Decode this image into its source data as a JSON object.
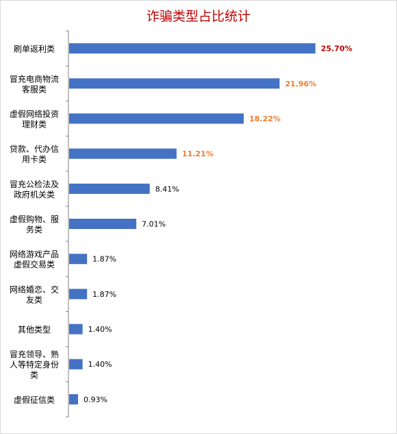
{
  "chart_data": {
    "type": "bar",
    "orientation": "horizontal",
    "title": "诈骗类型占比统计",
    "categories": [
      [
        "刷单返利类"
      ],
      [
        "冒充电商物流",
        "客服类"
      ],
      [
        "虚假网络投资",
        "理财类"
      ],
      [
        "贷款、代办信",
        "用卡类"
      ],
      [
        "冒充公检法及",
        "政府机关类"
      ],
      [
        "虚假购物、服",
        "务类"
      ],
      [
        "网络游戏产品",
        "虚假交易类"
      ],
      [
        "网络婚恋、交",
        "友类"
      ],
      [
        "其他类型"
      ],
      [
        "冒充领导、熟",
        "人等特定身份",
        "类"
      ],
      [
        "虚假征信类"
      ]
    ],
    "values": [
      25.7,
      21.96,
      18.22,
      11.21,
      8.41,
      7.01,
      1.87,
      1.87,
      1.4,
      1.4,
      0.93
    ],
    "value_labels": [
      "25.70%",
      "21.96%",
      "18.22%",
      "11.21%",
      "8.41%",
      "7.01%",
      "1.87%",
      "1.87%",
      "1.40%",
      "1.40%",
      "0.93%"
    ],
    "xlim": [
      0,
      30
    ],
    "grid": false,
    "legend": "none",
    "colors": {
      "title": "#c00000",
      "bar": "#4472c4",
      "label_top1": "#c00000",
      "label_top2_4": "#ed7d31",
      "label_default": "#000000",
      "axis": "#808080",
      "text": "#000000"
    }
  }
}
